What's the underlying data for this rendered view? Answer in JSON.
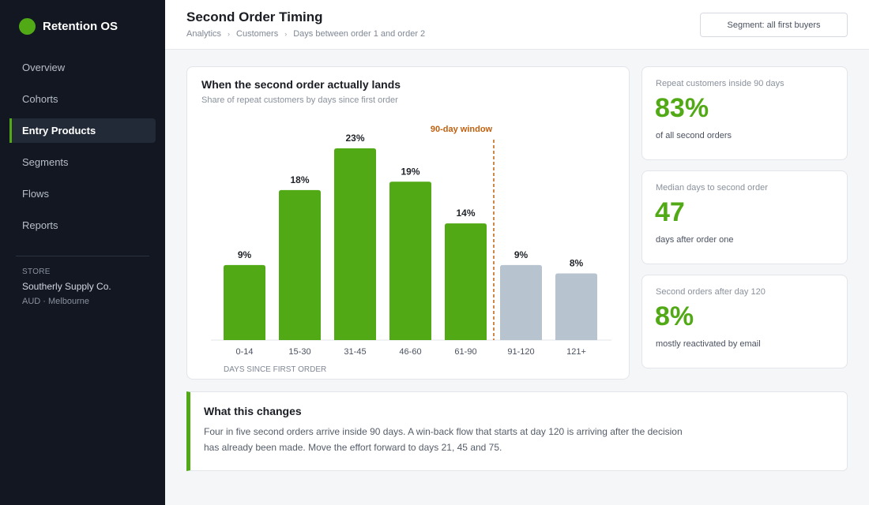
{
  "app": {
    "name": "Retention OS",
    "brand_color": "#52a916"
  },
  "sidebar": {
    "items": [
      {
        "label": "Overview",
        "active": false
      },
      {
        "label": "Cohorts",
        "active": false
      },
      {
        "label": "Entry Products",
        "active": true
      },
      {
        "label": "Segments",
        "active": false
      },
      {
        "label": "Flows",
        "active": false
      },
      {
        "label": "Reports",
        "active": false
      }
    ],
    "store": {
      "label": "STORE",
      "name": "Southerly Supply Co.",
      "meta": "AUD · Melbourne"
    }
  },
  "header": {
    "title": "Second Order Timing",
    "breadcrumb": [
      "Analytics",
      "Customers",
      "Days between order 1 and order 2"
    ],
    "segment_filter": "Segment: all first buyers"
  },
  "chart_card": {
    "title": "When the second order actually lands",
    "subtitle": "Share of repeat customers by days since first order"
  },
  "chart_data": {
    "type": "bar",
    "categories": [
      "0-14",
      "15-30",
      "31-45",
      "46-60",
      "61-90",
      "91-120",
      "121+"
    ],
    "values": [
      9,
      18,
      23,
      19,
      14,
      9,
      8
    ],
    "value_labels": [
      "9%",
      "18%",
      "23%",
      "19%",
      "14%",
      "9%",
      "8%"
    ],
    "xlabel": "DAYS SINCE FIRST ORDER",
    "ylabel": "",
    "ylim": [
      0,
      23
    ],
    "grid": false,
    "annotation": {
      "label": "90-day window",
      "after_category": "61-90",
      "color": "#c0600f"
    },
    "colors": {
      "inside_window": "#52a916",
      "outside_window": "#b8c3d0"
    }
  },
  "stats": [
    {
      "label": "Repeat customers inside 90 days",
      "value": "83%",
      "note": "of all second orders"
    },
    {
      "label": "Median days to second order",
      "value": "47",
      "note": "days after order one"
    },
    {
      "label": "Second orders after day 120",
      "value": "8%",
      "note": "mostly reactivated by email"
    }
  ],
  "insight": {
    "title": "What this changes",
    "body": "Four in five second orders arrive inside 90 days. A win-back flow that starts at day 120 is arriving after the decision has already been made. Move the effort forward to days 21, 45 and 75."
  }
}
